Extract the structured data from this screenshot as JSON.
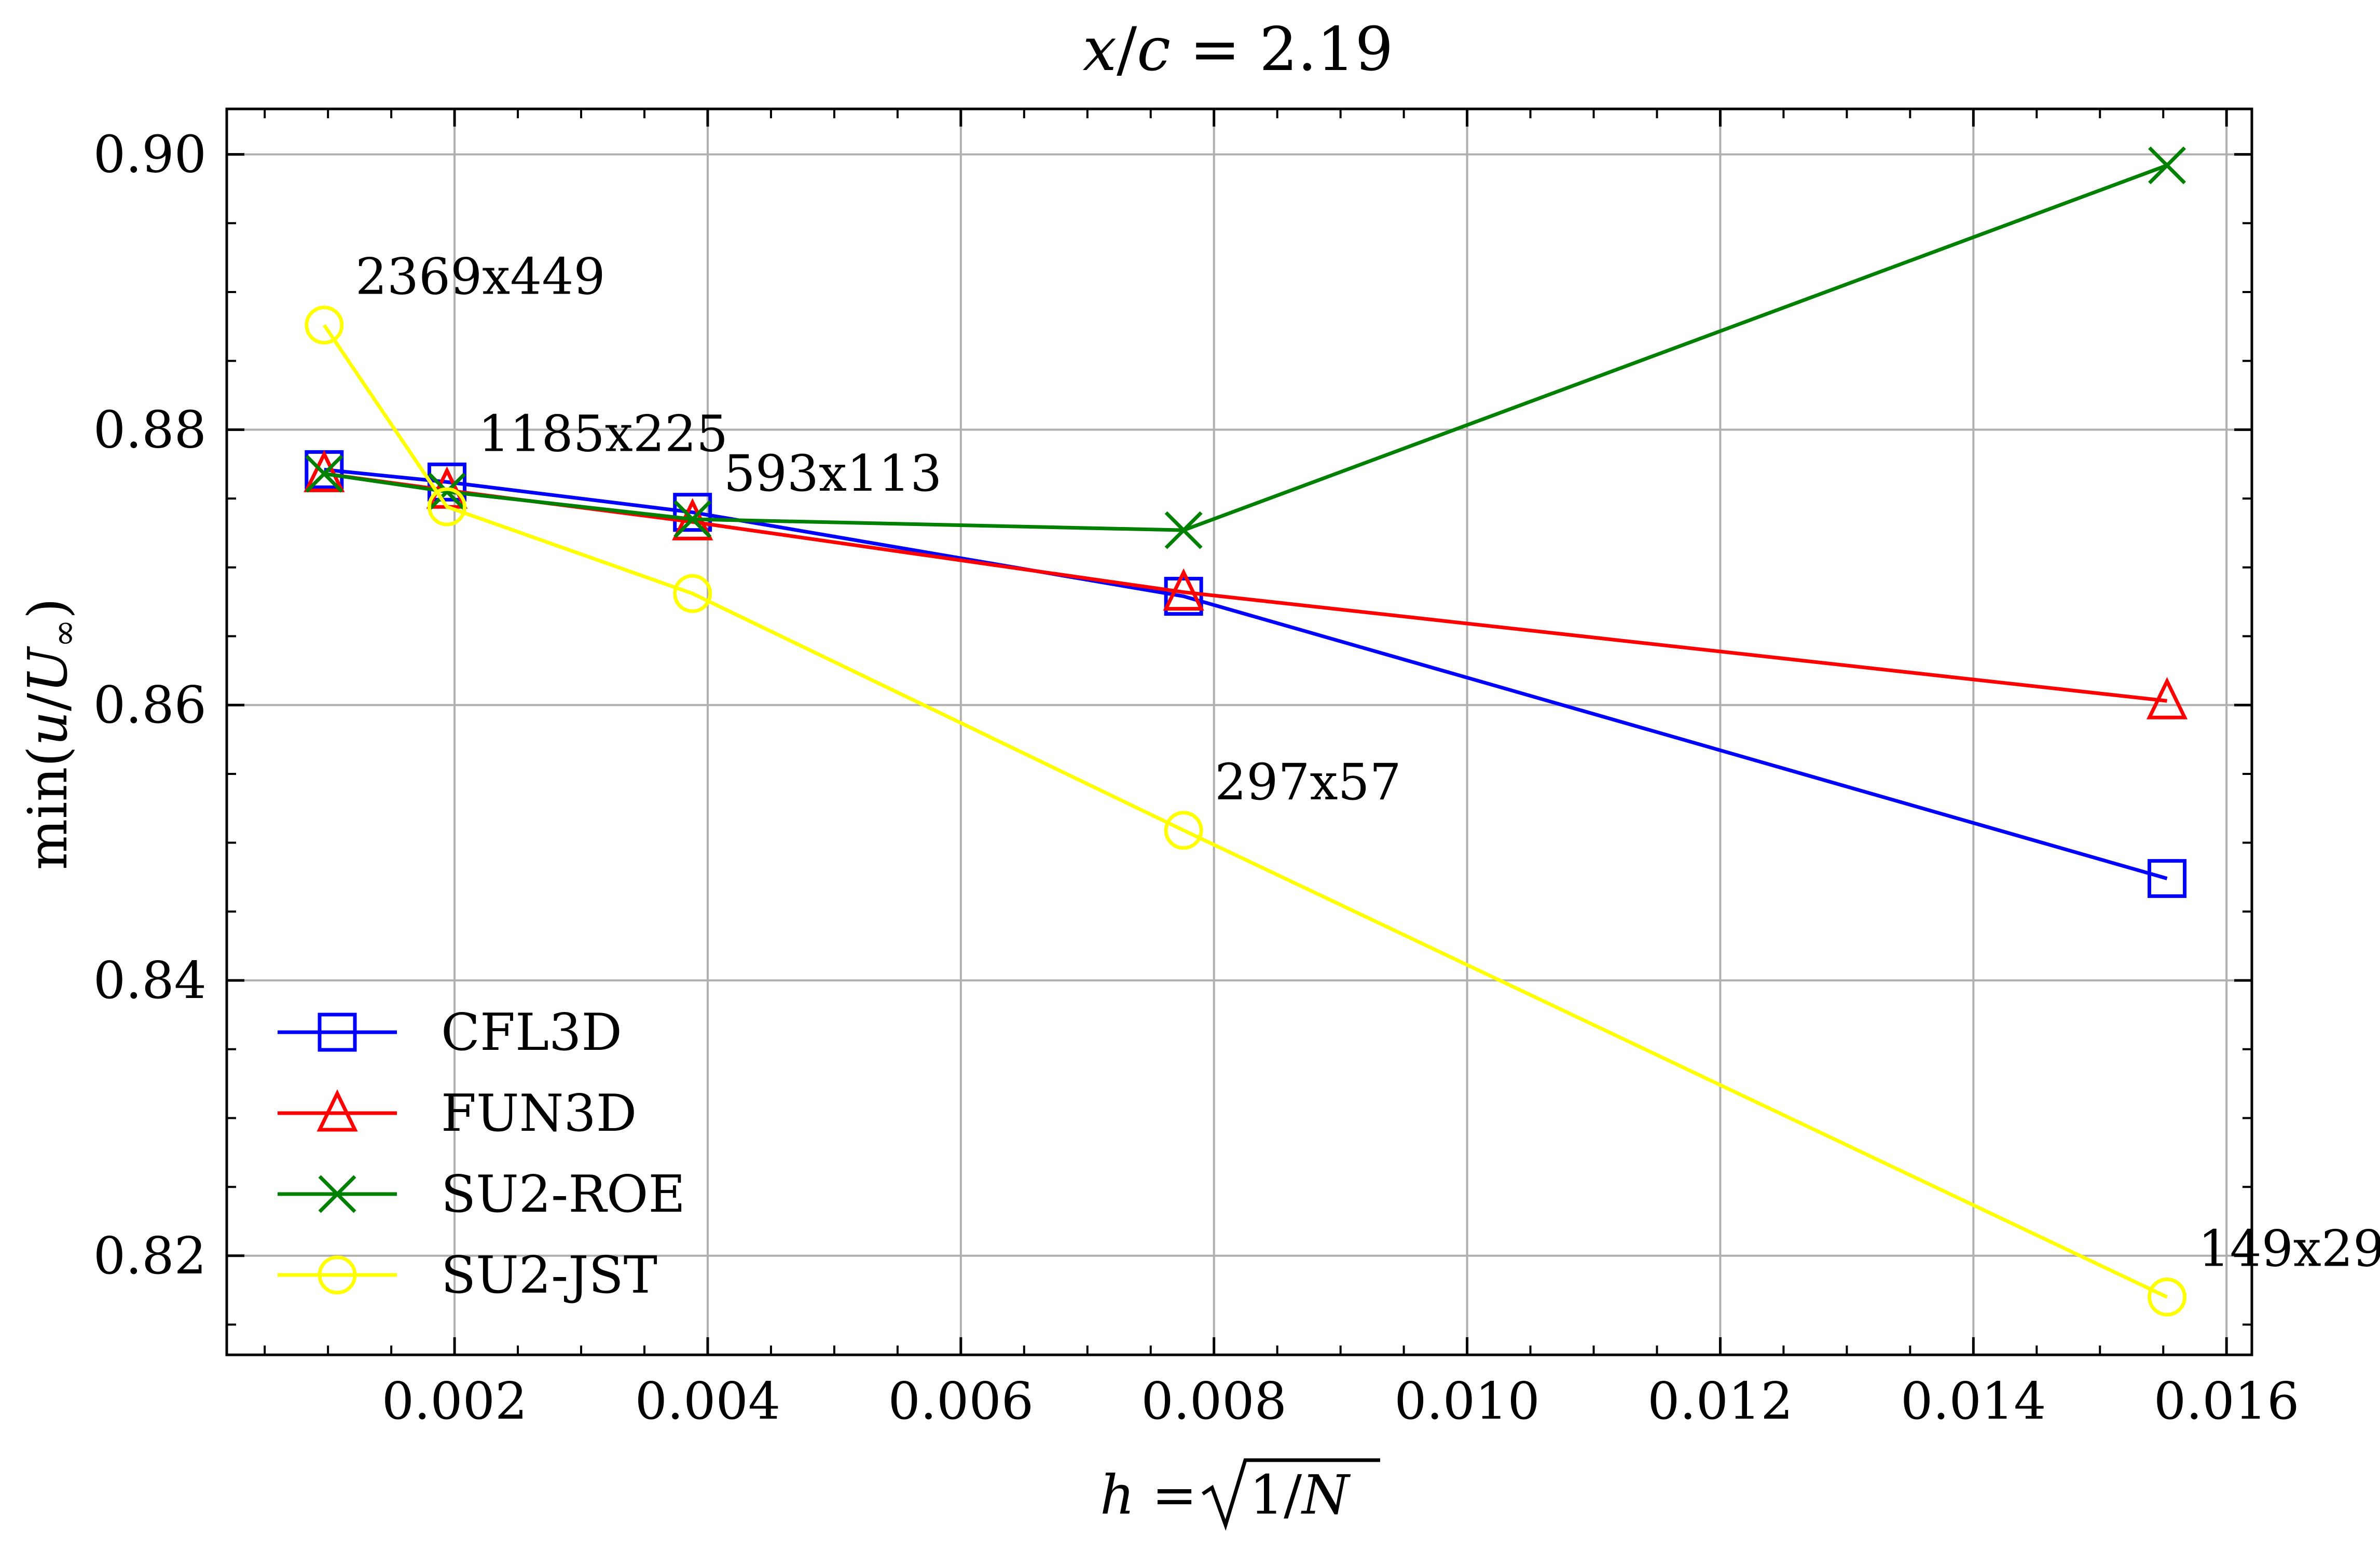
{
  "chart_data": {
    "type": "line",
    "title": "x/c = 2.19",
    "xlabel": "h = √1/N",
    "ylabel": "min(u/U∞)",
    "xlim": [
      0.0002,
      0.0162
    ],
    "ylim": [
      0.8128,
      0.9033
    ],
    "xticks": [
      0.002,
      0.004,
      0.006,
      0.008,
      0.01,
      0.012,
      0.014,
      0.016
    ],
    "xtick_labels": [
      "0.002",
      "0.004",
      "0.006",
      "0.008",
      "0.010",
      "0.012",
      "0.014",
      "0.016"
    ],
    "yticks": [
      0.82,
      0.84,
      0.86,
      0.88,
      0.9
    ],
    "ytick_labels": [
      "0.82",
      "0.84",
      "0.86",
      "0.88",
      "0.90"
    ],
    "grid": true,
    "legend_position": "lower-left",
    "x": [
      0.00097,
      0.00194,
      0.00388,
      0.00776,
      0.01553
    ],
    "series": [
      {
        "name": "CFL3D",
        "color": "#0000ff",
        "marker": "square",
        "values": [
          0.8771,
          0.8762,
          0.874,
          0.8679,
          0.8474
        ]
      },
      {
        "name": "FUN3D",
        "color": "#ff0000",
        "marker": "triangle",
        "values": [
          0.8768,
          0.8756,
          0.8733,
          0.8682,
          0.8603
        ]
      },
      {
        "name": "SU2-ROE",
        "color": "#008000",
        "marker": "x",
        "values": [
          0.8768,
          0.8755,
          0.8735,
          0.8727,
          0.8992
        ]
      },
      {
        "name": "SU2-JST",
        "color": "#ffff00",
        "marker": "circle",
        "values": [
          0.8876,
          0.8744,
          0.8681,
          0.8509,
          0.817
        ]
      }
    ],
    "annotations": [
      {
        "text": "2369x449",
        "x": 0.00097,
        "y": 0.8876
      },
      {
        "text": "1185x225",
        "x": 0.00194,
        "y": 0.8762
      },
      {
        "text": "593x113",
        "x": 0.00388,
        "y": 0.8733
      },
      {
        "text": "297x57",
        "x": 0.00776,
        "y": 0.8509
      },
      {
        "text": "149x29",
        "x": 0.01553,
        "y": 0.817
      }
    ]
  }
}
